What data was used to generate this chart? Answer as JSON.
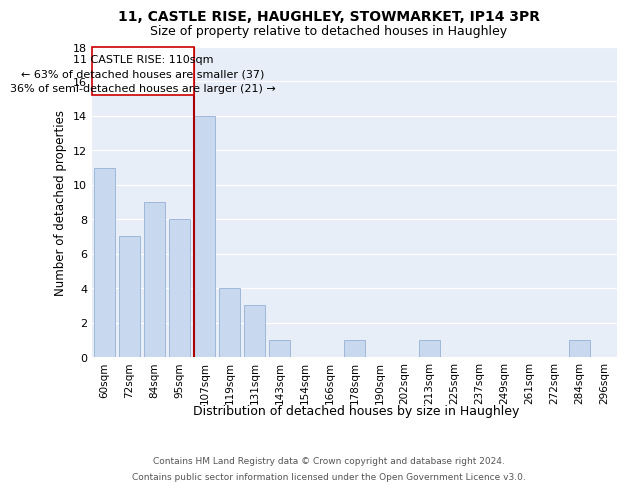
{
  "title1": "11, CASTLE RISE, HAUGHLEY, STOWMARKET, IP14 3PR",
  "title2": "Size of property relative to detached houses in Haughley",
  "xlabel": "Distribution of detached houses by size in Haughley",
  "ylabel": "Number of detached properties",
  "bins": [
    "60sqm",
    "72sqm",
    "84sqm",
    "95sqm",
    "107sqm",
    "119sqm",
    "131sqm",
    "143sqm",
    "154sqm",
    "166sqm",
    "178sqm",
    "190sqm",
    "202sqm",
    "213sqm",
    "225sqm",
    "237sqm",
    "249sqm",
    "261sqm",
    "272sqm",
    "284sqm",
    "296sqm"
  ],
  "values": [
    11,
    7,
    9,
    8,
    14,
    4,
    3,
    1,
    0,
    0,
    1,
    0,
    0,
    1,
    0,
    0,
    0,
    0,
    0,
    1,
    0
  ],
  "bar_color": "#c8d8ee",
  "bar_edge_color": "#a0b8d8",
  "vline_color": "#aa0000",
  "annotation_line1": "11 CASTLE RISE: 110sqm",
  "annotation_line2": "← 63% of detached houses are smaller (37)",
  "annotation_line3": "36% of semi-detached houses are larger (21) →",
  "annotation_box_edge": "#cc0000",
  "ylim": [
    0,
    18
  ],
  "yticks": [
    0,
    2,
    4,
    6,
    8,
    10,
    12,
    14,
    16,
    18
  ],
  "footer1": "Contains HM Land Registry data © Crown copyright and database right 2024.",
  "footer2": "Contains public sector information licensed under the Open Government Licence v3.0.",
  "bg_color": "#e8eef8",
  "grid_color": "#ffffff"
}
